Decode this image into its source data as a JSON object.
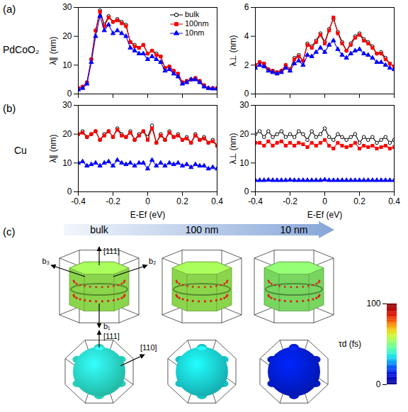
{
  "panels": [
    "(a)",
    "(b)",
    "(c)"
  ],
  "chart_data": [
    {
      "type": "line",
      "y_label": "λ∥ (nm)",
      "x": [
        -0.4,
        -0.375,
        -0.35,
        -0.325,
        -0.3,
        -0.275,
        -0.25,
        -0.225,
        -0.2,
        -0.175,
        -0.15,
        -0.125,
        -0.1,
        -0.075,
        -0.05,
        -0.025,
        0,
        0.025,
        0.05,
        0.075,
        0.1,
        0.125,
        0.15,
        0.175,
        0.2,
        0.225,
        0.25,
        0.275,
        0.3,
        0.325,
        0.35,
        0.375,
        0.4
      ],
      "xlim": [
        -0.4,
        0.4
      ],
      "xticks": [
        -0.4,
        -0.2,
        0,
        0.2,
        0.4
      ],
      "ylim": [
        0,
        30
      ],
      "yticks": [
        0,
        10,
        20,
        30
      ],
      "tick_labels": "y",
      "legend": "top-right",
      "series": [
        {
          "name": "bulk",
          "color": "#000000",
          "marker": "open-circle",
          "values": [
            2,
            2.5,
            4,
            12,
            22,
            29,
            24,
            27,
            25,
            26,
            25,
            24,
            18,
            17,
            16,
            17,
            14,
            15,
            14,
            13,
            9,
            9.5,
            8,
            7,
            4,
            4.5,
            5,
            5.5,
            4.5,
            3,
            2,
            2,
            2
          ]
        },
        {
          "name": "100nm",
          "color": "#ff0000",
          "marker": "square",
          "values": [
            2,
            2.5,
            4,
            12,
            22,
            28.5,
            23.5,
            26.5,
            25,
            25.5,
            24.5,
            23.5,
            18,
            16.5,
            16,
            17,
            14,
            15,
            13.5,
            13,
            9,
            9.5,
            8,
            7,
            4,
            4.5,
            5,
            5.5,
            4.5,
            3,
            2,
            2,
            2
          ]
        },
        {
          "name": "10nm",
          "color": "#0000ff",
          "marker": "triangle",
          "values": [
            1.5,
            2,
            3.5,
            11,
            20,
            27,
            22,
            24,
            21,
            22,
            21,
            20,
            16,
            15,
            14,
            14,
            12,
            13,
            12,
            11,
            8,
            8.5,
            7,
            6,
            3.5,
            4,
            5,
            5,
            4,
            2.5,
            2,
            1.8,
            1.8
          ]
        }
      ]
    },
    {
      "type": "line",
      "y_label": "λ⊥ (nm)",
      "x": [
        -0.4,
        -0.375,
        -0.35,
        -0.325,
        -0.3,
        -0.275,
        -0.25,
        -0.225,
        -0.2,
        -0.175,
        -0.15,
        -0.125,
        -0.1,
        -0.075,
        -0.05,
        -0.025,
        0,
        0.025,
        0.05,
        0.075,
        0.1,
        0.125,
        0.15,
        0.175,
        0.2,
        0.225,
        0.25,
        0.275,
        0.3,
        0.325,
        0.35,
        0.375,
        0.4
      ],
      "xlim": [
        -0.4,
        0.4
      ],
      "xticks": [
        -0.4,
        -0.2,
        0,
        0.2,
        0.4
      ],
      "ylim": [
        0,
        6
      ],
      "yticks": [
        0,
        2,
        4,
        6
      ],
      "tick_labels": "y",
      "series": [
        {
          "color": "#000000",
          "marker": "open-circle",
          "values": [
            2,
            2.2,
            2.1,
            1.7,
            1.6,
            1.5,
            1.6,
            2,
            1.7,
            2.5,
            2.7,
            2.3,
            3.5,
            3.3,
            3.7,
            4.2,
            3.6,
            4.5,
            5.2,
            4.3,
            3.6,
            3,
            3.5,
            4,
            4.2,
            3.8,
            3.6,
            3.3,
            2.8,
            2.9,
            2.5,
            2.1,
            1.9
          ]
        },
        {
          "color": "#ff0000",
          "marker": "square",
          "values": [
            2,
            2.2,
            2.1,
            1.7,
            1.6,
            1.5,
            1.6,
            2,
            1.7,
            2.4,
            2.6,
            2.3,
            3.4,
            3.2,
            3.6,
            4.1,
            3.5,
            4.4,
            5.3,
            4.2,
            3.5,
            3,
            3.4,
            3.9,
            4.1,
            3.7,
            3.5,
            3.2,
            2.8,
            2.8,
            2.4,
            2.1,
            1.9
          ]
        },
        {
          "color": "#0000ff",
          "marker": "triangle",
          "values": [
            1.8,
            2,
            1.9,
            1.6,
            1.5,
            1.4,
            1.5,
            1.8,
            1.6,
            2.1,
            2.3,
            2,
            2.7,
            2.6,
            2.9,
            3.2,
            2.9,
            3.4,
            3.7,
            3.1,
            2.7,
            2.5,
            2.8,
            3,
            3.1,
            2.8,
            2.7,
            2.5,
            2.2,
            2.2,
            2,
            1.8,
            1.7
          ]
        }
      ]
    },
    {
      "type": "line",
      "x_label": "E-Ef (eV)",
      "y_label": "λ∥ (nm)",
      "x": [
        -0.4,
        -0.375,
        -0.35,
        -0.325,
        -0.3,
        -0.275,
        -0.25,
        -0.225,
        -0.2,
        -0.175,
        -0.15,
        -0.125,
        -0.1,
        -0.075,
        -0.05,
        -0.025,
        0,
        0.025,
        0.05,
        0.075,
        0.1,
        0.125,
        0.15,
        0.175,
        0.2,
        0.225,
        0.25,
        0.275,
        0.3,
        0.325,
        0.35,
        0.375,
        0.4
      ],
      "xlim": [
        -0.4,
        0.4
      ],
      "xticks": [
        -0.4,
        -0.2,
        0,
        0.2,
        0.4
      ],
      "ylim": [
        0,
        30
      ],
      "yticks": [
        0,
        10,
        20,
        30
      ],
      "series": [
        {
          "color": "#000000",
          "marker": "open-circle",
          "values": [
            20,
            21,
            19,
            20,
            21,
            18,
            20,
            21,
            19,
            22,
            20,
            19,
            21,
            18,
            20,
            21,
            19,
            23,
            17,
            20,
            18,
            21,
            19,
            20,
            18,
            19,
            17,
            20,
            18,
            19,
            17,
            18,
            16
          ]
        },
        {
          "color": "#ff0000",
          "marker": "square",
          "values": [
            20,
            20.5,
            19,
            20,
            21,
            18,
            19.5,
            21,
            19,
            21.5,
            19.5,
            19,
            20.5,
            18,
            19.5,
            21,
            18,
            22,
            17,
            19.5,
            18,
            20.5,
            19,
            19.5,
            18,
            18.5,
            17,
            19.5,
            18,
            18.5,
            17,
            17.5,
            16
          ]
        },
        {
          "color": "#0000ff",
          "marker": "triangle",
          "values": [
            10,
            10.5,
            9,
            9.5,
            10,
            9,
            10,
            10.5,
            9,
            11,
            10,
            9.5,
            10,
            9,
            10,
            10,
            8,
            11,
            9,
            10,
            9,
            10,
            9.5,
            10,
            9,
            9.5,
            8.5,
            9.5,
            9,
            9,
            8,
            8.5,
            8
          ]
        }
      ]
    },
    {
      "type": "line",
      "x_label": "E-Ef (eV)",
      "y_label": "λ⊥ (nm)",
      "x": [
        -0.4,
        -0.375,
        -0.35,
        -0.325,
        -0.3,
        -0.275,
        -0.25,
        -0.225,
        -0.2,
        -0.175,
        -0.15,
        -0.125,
        -0.1,
        -0.075,
        -0.05,
        -0.025,
        0,
        0.025,
        0.05,
        0.075,
        0.1,
        0.125,
        0.15,
        0.175,
        0.2,
        0.225,
        0.25,
        0.275,
        0.3,
        0.325,
        0.35,
        0.375,
        0.4
      ],
      "xlim": [
        -0.4,
        0.4
      ],
      "xticks": [
        -0.4,
        -0.2,
        0,
        0.2,
        0.4
      ],
      "ylim": [
        0,
        30
      ],
      "yticks": [
        0,
        10,
        20,
        30
      ],
      "series": [
        {
          "color": "#000000",
          "marker": "open-circle",
          "values": [
            20,
            21,
            19,
            21,
            19,
            20,
            21,
            19,
            20,
            19,
            21,
            20,
            18,
            21,
            19,
            20,
            22,
            19,
            18,
            20,
            19,
            18,
            19,
            20,
            17,
            19,
            18,
            19,
            17,
            18,
            19,
            17,
            18
          ]
        },
        {
          "color": "#ff0000",
          "marker": "square",
          "values": [
            17,
            17,
            16,
            17.5,
            16,
            17,
            17.5,
            16,
            17,
            16,
            17,
            16.5,
            15.5,
            17,
            16,
            17,
            18,
            16,
            15,
            17,
            16,
            15.5,
            16,
            17,
            15,
            16,
            15.5,
            16,
            15,
            15.5,
            16,
            15,
            15.5
          ]
        },
        {
          "color": "#0000ff",
          "marker": "triangle",
          "values": [
            4,
            4,
            4,
            4.1,
            4,
            4,
            4,
            4,
            4.1,
            4,
            4,
            4,
            4,
            4,
            4,
            4,
            4.2,
            4,
            4,
            4,
            4,
            4,
            4,
            4,
            4,
            4,
            4,
            4,
            4,
            4,
            4,
            4,
            4
          ]
        }
      ]
    }
  ],
  "fermi_surfaces": {
    "columns": [
      "bulk",
      "100 nm",
      "10 nm"
    ],
    "rows": [
      {
        "name": "PdCoO₂",
        "tau_d": [
          55,
          55,
          52
        ],
        "directions": [
          "[111]",
          "b₁",
          "b₂",
          "b₃"
        ]
      },
      {
        "name": "Cu",
        "tau_d": [
          38,
          35,
          15
        ],
        "directions": [
          "[111]",
          "[110]"
        ]
      }
    ],
    "colorbar": {
      "label": "τd (fs)",
      "lim": [
        0,
        100
      ],
      "ticks": [
        0,
        100
      ]
    }
  }
}
